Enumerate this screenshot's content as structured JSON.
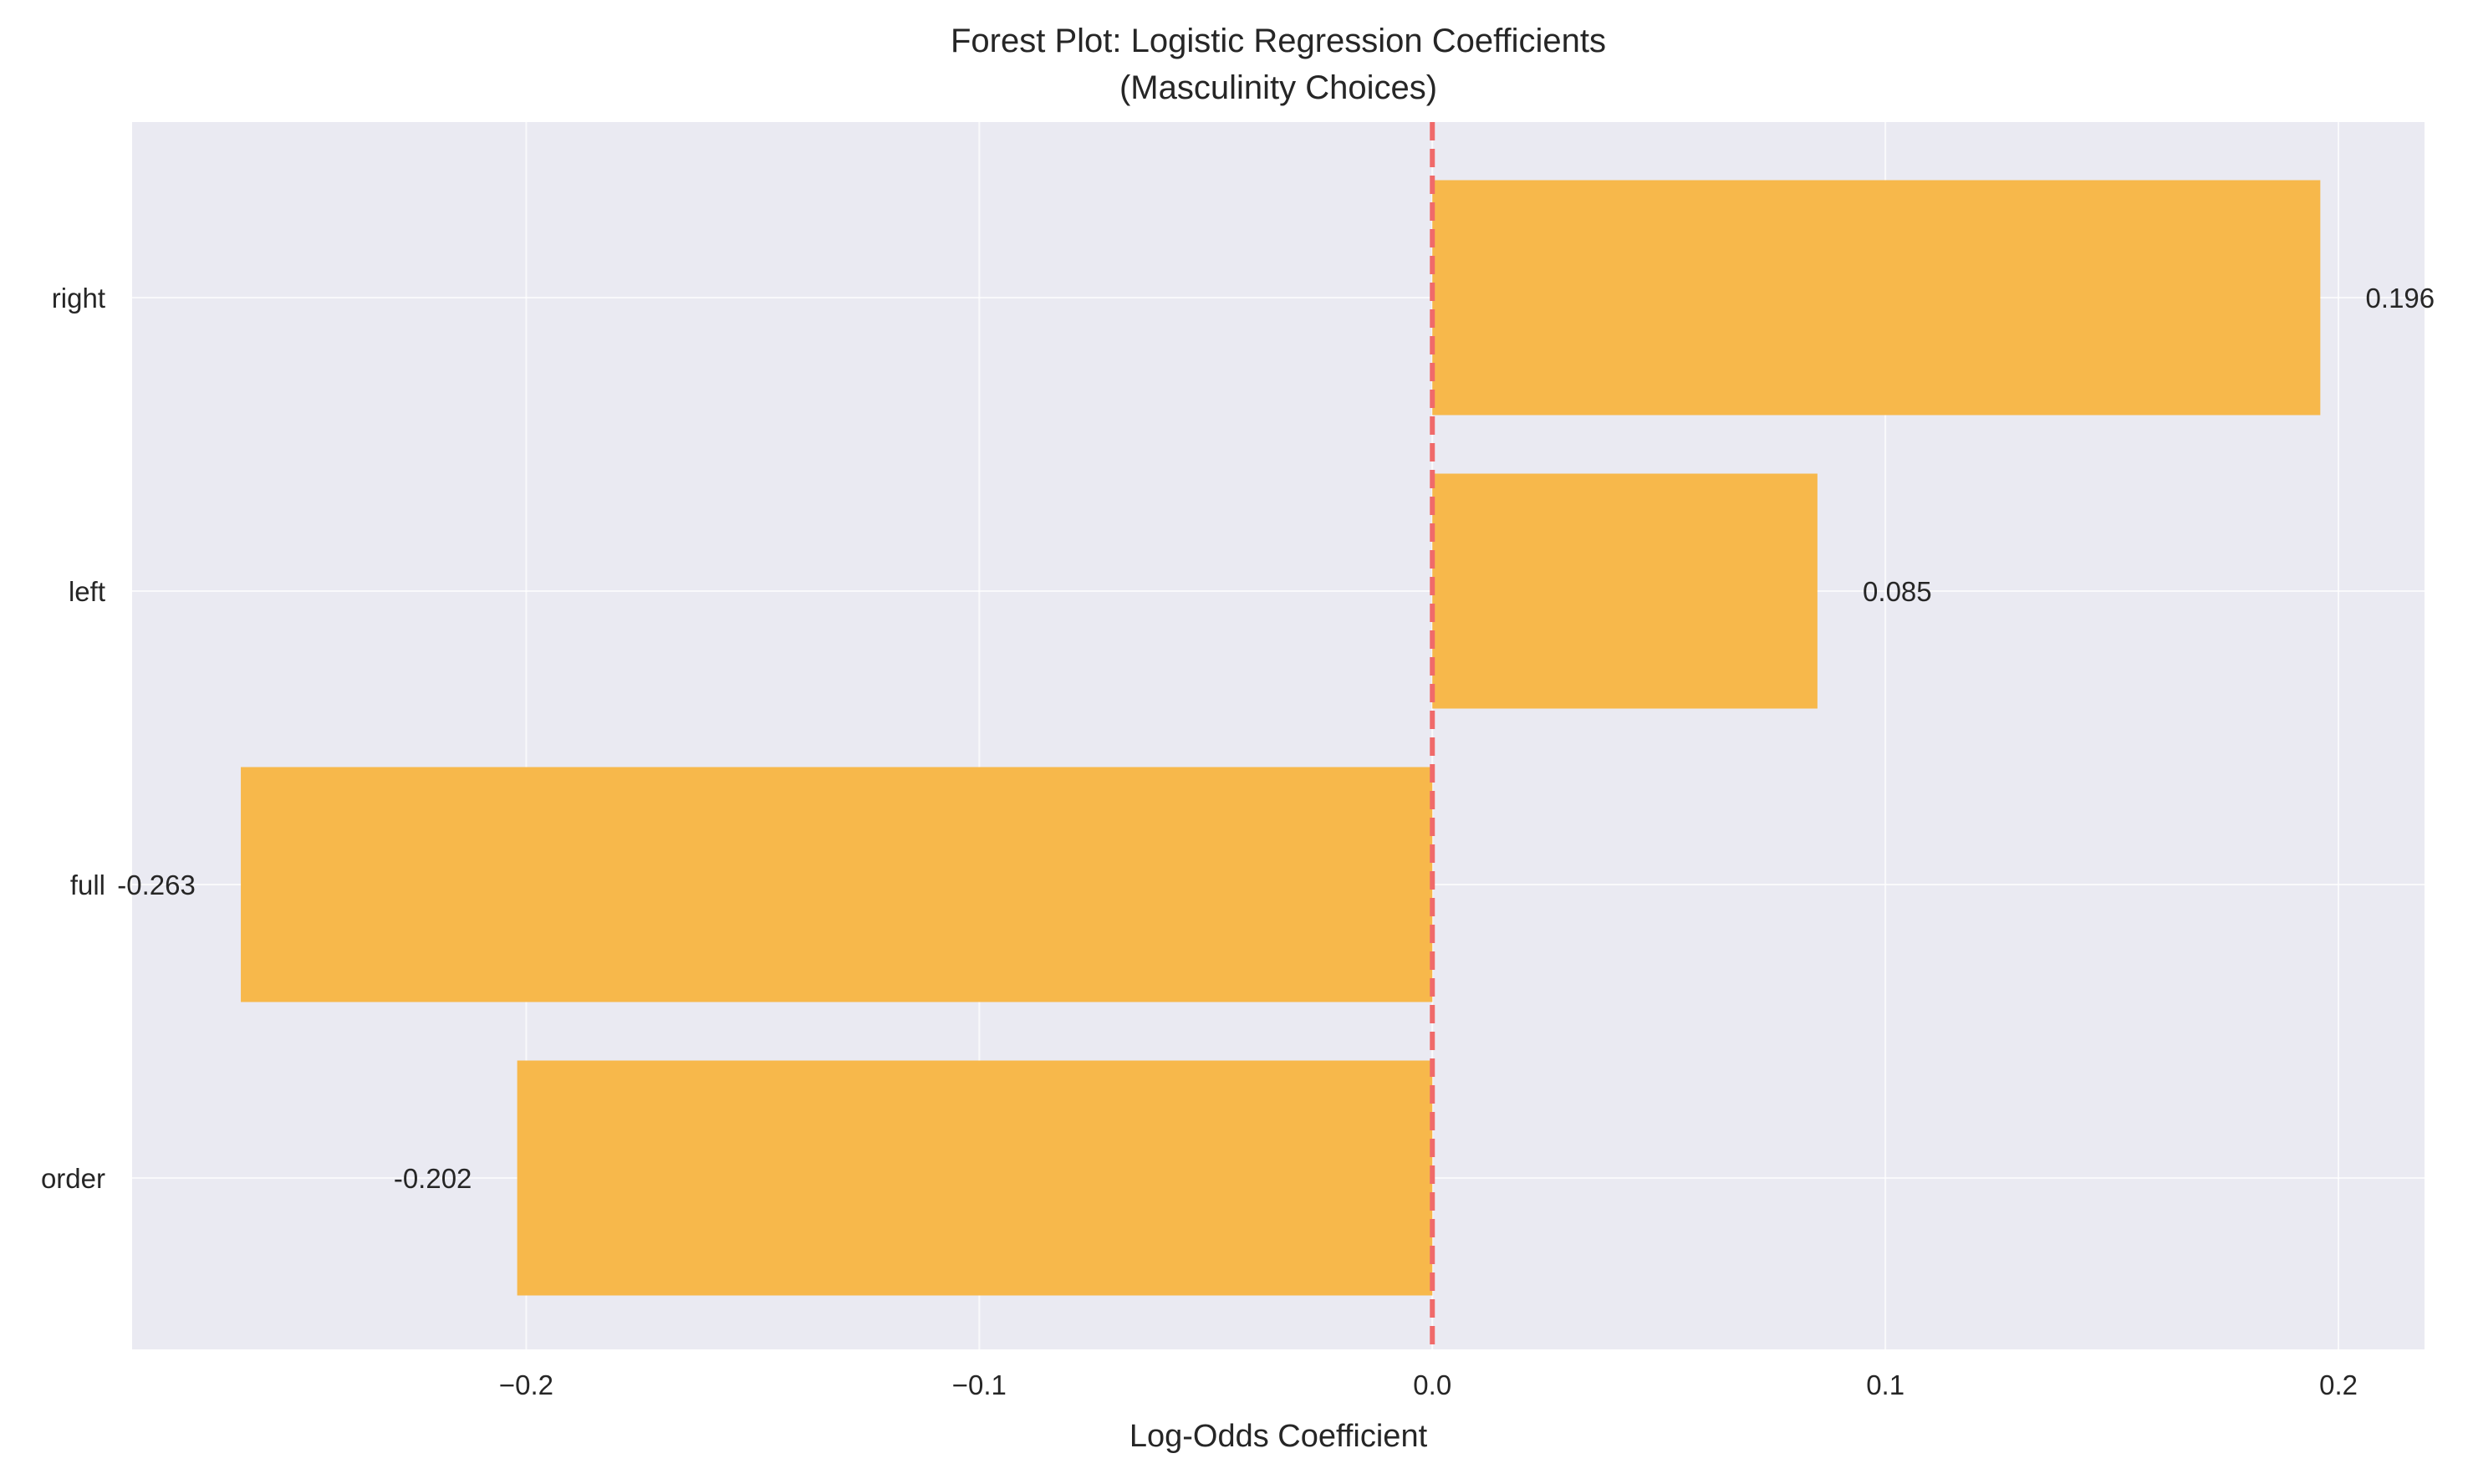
{
  "chart_data": {
    "type": "bar",
    "orientation": "horizontal",
    "title": "Forest Plot: Logistic Regression Coefficients",
    "subtitle": "(Masculinity Choices)",
    "xlabel": "Log-Odds Coefficient",
    "ylabel": "",
    "categories": [
      "order",
      "full",
      "left",
      "right"
    ],
    "values": [
      -0.202,
      -0.263,
      0.085,
      0.196
    ],
    "value_labels": [
      "-0.202",
      "-0.263",
      "0.085",
      "0.196"
    ],
    "xlim": [
      -0.287,
      0.219
    ],
    "x_ticks": [
      -0.2,
      -0.1,
      0.0,
      0.1,
      0.2
    ],
    "x_tick_labels": [
      "−0.2",
      "−0.1",
      "0.0",
      "0.1",
      "0.2"
    ],
    "reference_line": 0.0,
    "grid": true,
    "legend": "none",
    "colors": {
      "bar": "#F7B84B",
      "reference_line": "#F06A6A",
      "plot_background": "#EAEAF2",
      "grid": "#FFFFFF"
    }
  }
}
